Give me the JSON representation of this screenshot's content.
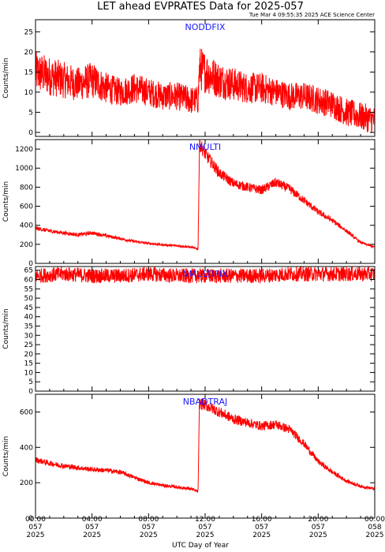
{
  "header": {
    "title": "LET ahead EVPRATES Data for 2025-057",
    "timestamp": "Tue Mar  4 09:55:35 2025 ACE Science Center"
  },
  "colors": {
    "trace": "#ff0000",
    "panel_label": "#1a1aff",
    "axes": "#000000"
  },
  "x_axis": {
    "label": "UTC Day of Year",
    "range_hours": [
      0,
      24
    ],
    "ticks": [
      {
        "hour": 0,
        "time": "00:00",
        "doy": "057",
        "year": "2025"
      },
      {
        "hour": 4,
        "time": "04:00",
        "doy": "057",
        "year": "2025"
      },
      {
        "hour": 8,
        "time": "08:00",
        "doy": "057",
        "year": "2025"
      },
      {
        "hour": 12,
        "time": "12:00",
        "doy": "057",
        "year": "2025"
      },
      {
        "hour": 16,
        "time": "16:00",
        "doy": "057",
        "year": "2025"
      },
      {
        "hour": 20,
        "time": "20:00",
        "doy": "057",
        "year": "2025"
      },
      {
        "hour": 24,
        "time": "00:00",
        "doy": "058",
        "year": "2025"
      }
    ]
  },
  "chart_data": [
    {
      "type": "line",
      "label": "NODDFIX",
      "ylabel": "Counts/min",
      "ylim": [
        -1,
        28
      ],
      "yticks": [
        0,
        5,
        10,
        15,
        20,
        25
      ],
      "series": [
        {
          "x": [
            0,
            1,
            2,
            3,
            4,
            5,
            6,
            7,
            8,
            9,
            10,
            11,
            11.5,
            11.6,
            12,
            13,
            14,
            15,
            16,
            17,
            18,
            19,
            20,
            21,
            22,
            23,
            24
          ],
          "y": [
            15,
            14,
            13,
            12,
            13,
            11,
            10,
            11,
            10,
            9,
            9,
            8,
            8,
            16,
            15,
            13,
            12,
            11,
            11,
            10,
            9,
            9,
            8,
            7,
            5,
            4,
            3
          ]
        }
      ]
    },
    {
      "type": "line",
      "label": "NMULTI",
      "ylabel": "Counts/min",
      "ylim": [
        0,
        1300
      ],
      "yticks": [
        0,
        200,
        400,
        600,
        800,
        1000,
        1200
      ],
      "series": [
        {
          "x": [
            0,
            1,
            2,
            3,
            4,
            5,
            6,
            7,
            8,
            9,
            10,
            11,
            11.5,
            11.6,
            12,
            13,
            14,
            15,
            16,
            17,
            18,
            19,
            20,
            21,
            22,
            23,
            24
          ],
          "y": [
            370,
            340,
            320,
            300,
            320,
            290,
            260,
            230,
            210,
            195,
            185,
            170,
            150,
            1260,
            1150,
            950,
            840,
            800,
            770,
            850,
            780,
            660,
            540,
            450,
            340,
            220,
            170
          ]
        }
      ]
    },
    {
      "type": "line",
      "label": "NMULTIFIX",
      "ylabel": "Counts/min",
      "ylim": [
        0,
        67
      ],
      "yticks": [
        0,
        5,
        10,
        15,
        20,
        25,
        30,
        35,
        40,
        45,
        50,
        55,
        60,
        65
      ],
      "series": [
        {
          "x": [
            0,
            2,
            4,
            6,
            8,
            10,
            12,
            14,
            16,
            18,
            20,
            22,
            24
          ],
          "y": [
            62,
            63,
            62,
            62,
            63,
            62,
            62,
            62,
            62,
            63,
            63,
            63,
            63
          ]
        }
      ]
    },
    {
      "type": "line",
      "label": "NBADTRAJ",
      "ylabel": "Counts/min",
      "ylim": [
        0,
        700
      ],
      "yticks": [
        0,
        200,
        400,
        600
      ],
      "series": [
        {
          "x": [
            0,
            1,
            2,
            3,
            4,
            5,
            6,
            7,
            8,
            9,
            10,
            11,
            11.5,
            11.6,
            12,
            13,
            14,
            15,
            16,
            17,
            18,
            19,
            20,
            21,
            22,
            23,
            24
          ],
          "y": [
            330,
            310,
            295,
            285,
            275,
            270,
            260,
            230,
            200,
            185,
            175,
            165,
            150,
            650,
            640,
            600,
            560,
            540,
            520,
            530,
            500,
            420,
            320,
            260,
            210,
            180,
            165
          ]
        }
      ]
    }
  ]
}
